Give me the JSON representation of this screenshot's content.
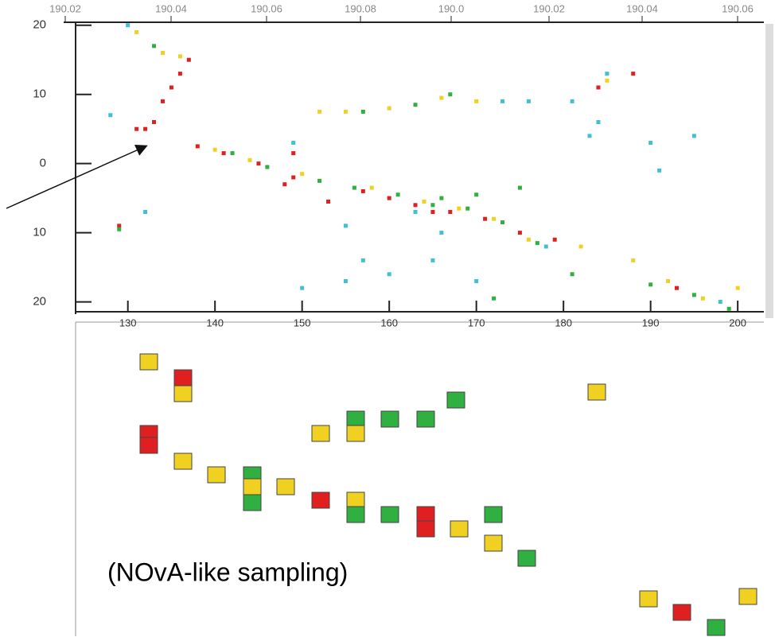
{
  "chart_data": {
    "type": "scatter",
    "top_labels": [
      "190.02",
      "190.04",
      "190.06",
      "190.08",
      "190.0",
      "190.02",
      "190.04",
      "190.06"
    ],
    "xlim": [
      124,
      203
    ],
    "ylim": [
      -21.2,
      20.2
    ],
    "xticks": [
      130,
      140,
      150,
      160,
      170,
      180,
      190,
      200
    ],
    "yticks": [
      20,
      10,
      0,
      {
        "value": -10,
        "label": "10"
      },
      {
        "value": -20,
        "label": "20"
      }
    ],
    "series": [
      {
        "color": "#e02020",
        "x": [
          131,
          132,
          133,
          134,
          135,
          136,
          137,
          138,
          141,
          145,
          149,
          153,
          157,
          160,
          163,
          165,
          167,
          171,
          175,
          179,
          184,
          188,
          193,
          129,
          149,
          148
        ],
        "values": [
          5,
          5,
          6,
          9,
          11,
          13,
          15,
          2.5,
          1.5,
          0,
          -2,
          -5.5,
          -4,
          -5,
          -6,
          -7,
          -7,
          -8,
          -10,
          -11,
          11,
          13,
          -18,
          -9,
          1.5,
          -3
        ]
      },
      {
        "color": "#f0d020",
        "x": [
          131,
          134,
          136,
          140,
          144,
          152,
          155,
          160,
          166,
          170,
          150,
          158,
          164,
          168,
          172,
          176,
          182,
          185,
          188,
          192,
          196,
          200
        ],
        "values": [
          19,
          16,
          15.5,
          2,
          0.5,
          7.5,
          7.5,
          8,
          9.5,
          9,
          -1.5,
          -3.5,
          -5.5,
          -6.5,
          -8,
          -11,
          -12,
          12,
          -14,
          -17,
          -19.5,
          -18
        ]
      },
      {
        "color": "#30b040",
        "x": [
          133,
          142,
          146,
          152,
          156,
          161,
          165,
          169,
          173,
          177,
          157,
          163,
          167,
          166,
          170,
          175,
          181,
          190,
          195,
          199,
          129,
          172
        ],
        "values": [
          17,
          1.5,
          -0.5,
          -2.5,
          -3.5,
          -4.5,
          -6,
          -6.5,
          -8.5,
          -11.5,
          7.5,
          8.5,
          10,
          -5,
          -4.5,
          -3.5,
          -16,
          -17.5,
          -19,
          -21,
          -9.5,
          -19.5
        ]
      },
      {
        "color": "#40c0d0",
        "x": [
          130,
          128,
          132,
          149,
          150,
          155,
          157,
          163,
          166,
          173,
          176,
          181,
          183,
          184,
          185,
          190,
          191,
          195,
          170,
          178,
          198,
          155,
          160,
          165
        ],
        "values": [
          20,
          7,
          -7,
          3,
          -18,
          -9,
          -14,
          -7,
          -10,
          9,
          9,
          9,
          4,
          6,
          13,
          3,
          -1,
          4,
          -17,
          -12,
          -20,
          -17,
          -16,
          -14
        ]
      }
    ]
  },
  "annotation": "(NOvA-like sampling)"
}
